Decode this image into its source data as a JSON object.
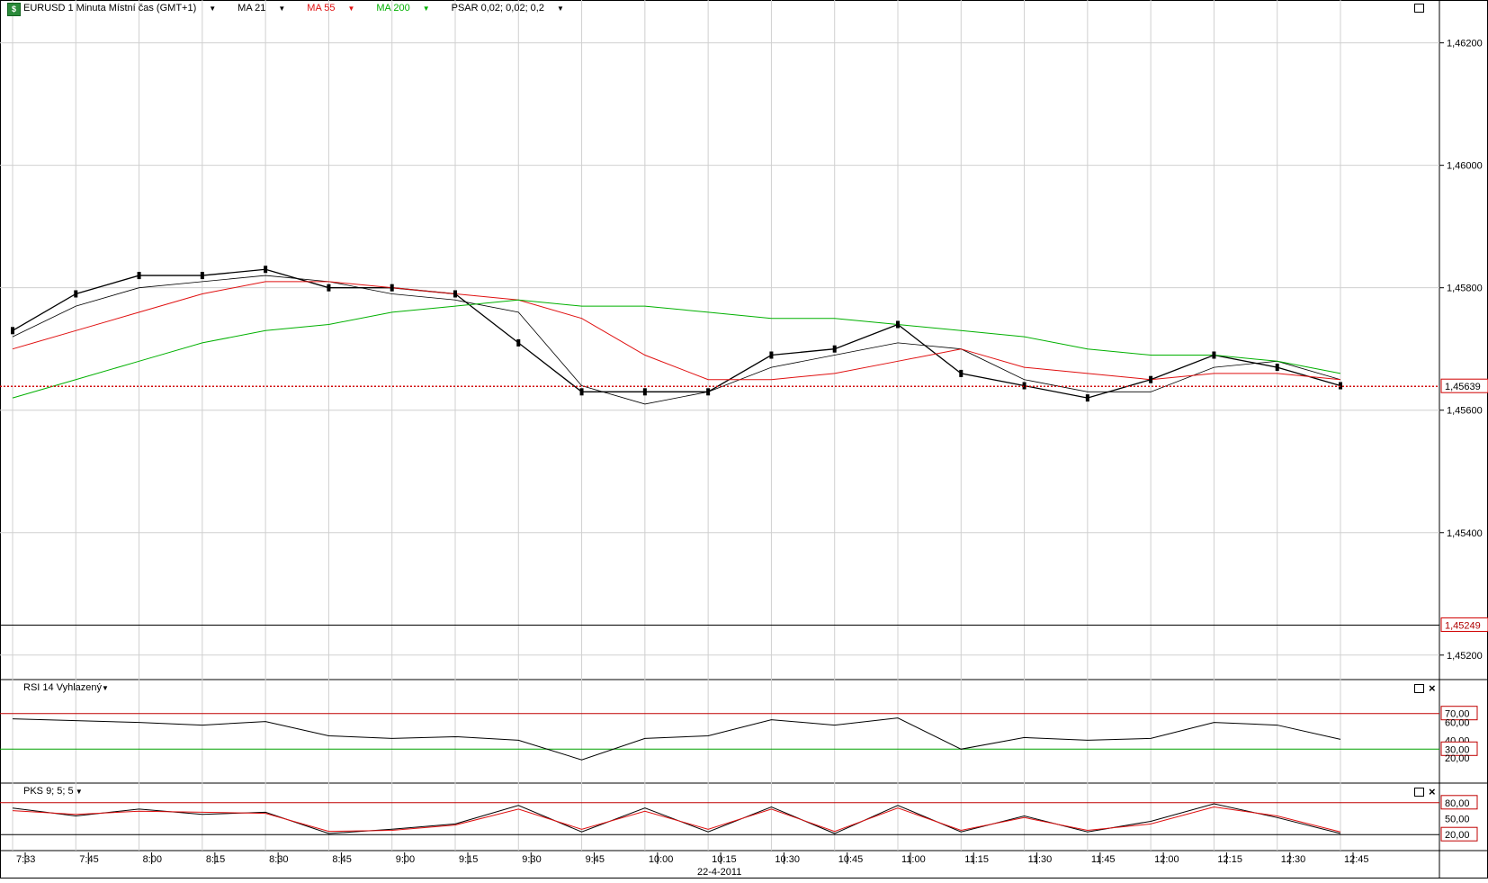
{
  "header": {
    "symbol_icon": "currency-exchange-icon",
    "instrument": "EURUSD 1 Minuta Místní čas (GMT+1)",
    "ma21": "MA 21",
    "ma55": "MA 55",
    "ma200": "MA 200",
    "psar": "PSAR 0,02; 0,02; 0,2"
  },
  "colors": {
    "ma21": "#000000",
    "ma55": "#e01010",
    "ma200": "#00b000",
    "price_line": "#d00000",
    "grid": "#d0d0d0"
  },
  "price_axis": {
    "ticks": [
      "1,46200",
      "1,46000",
      "1,45800",
      "1,45600",
      "1,45400",
      "1,45200"
    ],
    "current_price": "1,45639",
    "lower_marker": "1,45249"
  },
  "rsi": {
    "title": "RSI 14 Vyhlazený",
    "ticks": [
      "70,00",
      "60,00",
      "40,00",
      "30,00",
      "20,00"
    ]
  },
  "pks": {
    "title": "PKS 9; 5; 5",
    "ticks": [
      "80,00",
      "50,00",
      "20,00"
    ]
  },
  "time_axis": {
    "labels": [
      "7:33",
      "7:45",
      "8:00",
      "8:15",
      "8:30",
      "8:45",
      "9:00",
      "9:15",
      "9:30",
      "9:45",
      "10:00",
      "10:15",
      "10:30",
      "10:45",
      "11:00",
      "11:15",
      "11:30",
      "11:45",
      "12:00",
      "12:15",
      "12:30",
      "12:45"
    ],
    "date": "22-4-2011"
  },
  "chart_data": {
    "type": "line",
    "title": "EURUSD 1 Minuta Místní čas (GMT+1)",
    "x": [
      "7:33",
      "7:45",
      "8:00",
      "8:15",
      "8:30",
      "8:45",
      "9:00",
      "9:15",
      "9:30",
      "9:45",
      "10:00",
      "10:15",
      "10:30",
      "10:45",
      "11:00",
      "11:15",
      "11:30",
      "11:45",
      "12:00",
      "12:15",
      "12:30",
      "12:45"
    ],
    "ylim": [
      1.4516,
      1.4627
    ],
    "series": [
      {
        "name": "",
        "values": [
          1.4573,
          1.4579,
          1.4582,
          1.4582,
          1.4583,
          1.458,
          1.458,
          1.4579,
          1.4571,
          1.4563,
          1.4563,
          1.4563,
          1.4569,
          1.457,
          1.4574,
          1.4566,
          1.4564,
          1.4562,
          1.4565,
          1.4569,
          1.4567,
          1.4564
        ]
      },
      {
        "name": "MA 21",
        "values": [
          1.4572,
          1.4577,
          1.458,
          1.4581,
          1.4582,
          1.4581,
          1.4579,
          1.4578,
          1.4576,
          1.4564,
          1.4561,
          1.4563,
          1.4567,
          1.4569,
          1.4571,
          1.457,
          1.4565,
          1.4563,
          1.4563,
          1.4567,
          1.4568,
          1.4565
        ]
      },
      {
        "name": "MA 55",
        "values": [
          1.457,
          1.4573,
          1.4576,
          1.4579,
          1.4581,
          1.4581,
          1.458,
          1.4579,
          1.4578,
          1.4575,
          1.4569,
          1.4565,
          1.4565,
          1.4566,
          1.4568,
          1.457,
          1.4567,
          1.4566,
          1.4565,
          1.4566,
          1.4566,
          1.4565
        ]
      },
      {
        "name": "MA 200",
        "values": [
          1.4562,
          1.4565,
          1.4568,
          1.4571,
          1.4573,
          1.4574,
          1.4576,
          1.4577,
          1.4578,
          1.4577,
          1.4577,
          1.4576,
          1.4575,
          1.4575,
          1.4574,
          1.4573,
          1.4572,
          1.457,
          1.4569,
          1.4569,
          1.4568,
          1.4566
        ]
      }
    ],
    "rsi_values": [
      64,
      62,
      60,
      57,
      61,
      45,
      42,
      44,
      40,
      18,
      42,
      45,
      63,
      57,
      65,
      30,
      43,
      40,
      42,
      60,
      57,
      41
    ],
    "pks_k": [
      70,
      55,
      68,
      58,
      62,
      22,
      30,
      40,
      75,
      25,
      70,
      25,
      72,
      22,
      75,
      25,
      55,
      25,
      45,
      78,
      52,
      22
    ],
    "pks_d": [
      65,
      58,
      64,
      62,
      60,
      26,
      28,
      38,
      68,
      30,
      64,
      30,
      68,
      26,
      70,
      28,
      52,
      28,
      40,
      72,
      55,
      25
    ]
  }
}
